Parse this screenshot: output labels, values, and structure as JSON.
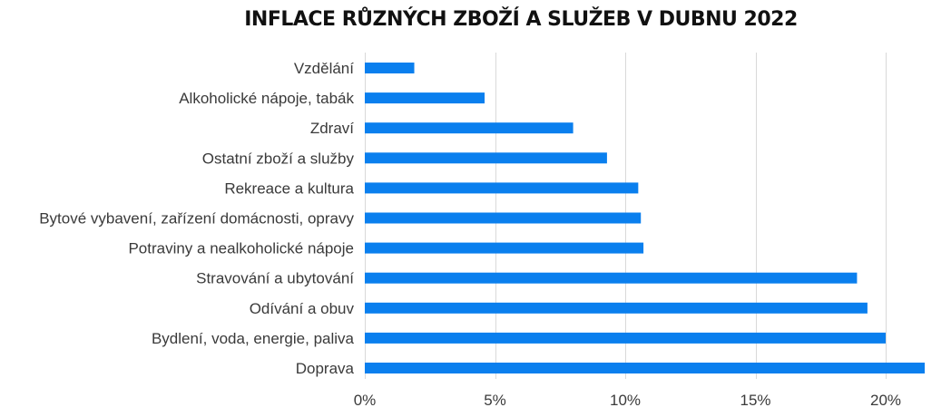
{
  "chart_data": {
    "type": "bar",
    "orientation": "horizontal",
    "title": "INFLACE RŮZNÝCH ZBOŽÍ A SLUŽEB V DUBNU 2022",
    "categories": [
      "Vzdělání",
      "Alkoholické nápoje, tabák",
      "Zdraví",
      "Ostatní zboží a služby",
      "Rekreace a kultura",
      "Bytové vybavení, zařízení domácnosti, opravy",
      "Potraviny a nealkoholické nápoje",
      "Stravování a ubytování",
      "Odívání a obuv",
      "Bydlení, voda, energie, paliva",
      "Doprava"
    ],
    "values": [
      1.9,
      4.6,
      8.0,
      9.3,
      10.5,
      10.6,
      10.7,
      18.9,
      19.3,
      20.0,
      21.5
    ],
    "xlim": [
      0,
      22
    ],
    "xticks": [
      0,
      5,
      10,
      15,
      20
    ],
    "xtick_labels": [
      "0%",
      "5%",
      "10%",
      "15%",
      "20%"
    ],
    "xlabel": "",
    "ylabel": "",
    "grid": "vertical",
    "legend": "none",
    "bar_color": "#0A7FEE"
  }
}
